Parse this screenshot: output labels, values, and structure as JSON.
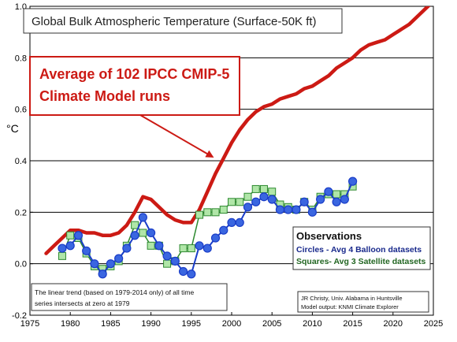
{
  "chart_data": {
    "type": "line",
    "title": "Global Bulk Atmospheric Temperature (Surface-50K ft)",
    "ylabel": "°C",
    "xlim": [
      1975,
      2025
    ],
    "ylim": [
      -0.2,
      1.0
    ],
    "x_ticks": [
      1975,
      1980,
      1985,
      1990,
      1995,
      2000,
      2005,
      2010,
      2015,
      2020,
      2025
    ],
    "x_tick_labels": [
      "1975",
      "1980",
      "1985",
      "1990",
      "1995",
      "2000",
      "2005",
      "2010",
      "2015",
      "2020",
      "2025"
    ],
    "y_ticks": [
      -0.2,
      0.0,
      0.2,
      0.4,
      0.6,
      0.8,
      1.0
    ],
    "y_tick_labels": [
      "-0.2",
      "0.0",
      "0.2",
      "0.4",
      "0.6",
      "0.8",
      "1.0"
    ],
    "grid": "horizontal",
    "series": [
      {
        "name": "Average of 102 IPCC CMIP-5 Climate Model runs",
        "style": "line",
        "color": "#cc1a14",
        "x": [
          1977,
          1978,
          1979,
          1980,
          1981,
          1982,
          1983,
          1984,
          1985,
          1986,
          1987,
          1988,
          1989,
          1990,
          1991,
          1992,
          1993,
          1994,
          1995,
          1996,
          1997,
          1998,
          1999,
          2000,
          2001,
          2002,
          2003,
          2004,
          2005,
          2006,
          2007,
          2008,
          2009,
          2010,
          2011,
          2012,
          2013,
          2014,
          2015,
          2016,
          2017,
          2018,
          2019,
          2020,
          2021,
          2022,
          2023,
          2024,
          2025
        ],
        "y": [
          0.04,
          0.07,
          0.1,
          0.13,
          0.13,
          0.12,
          0.12,
          0.11,
          0.11,
          0.12,
          0.15,
          0.2,
          0.26,
          0.25,
          0.22,
          0.19,
          0.17,
          0.16,
          0.16,
          0.21,
          0.28,
          0.35,
          0.41,
          0.47,
          0.52,
          0.56,
          0.59,
          0.61,
          0.62,
          0.64,
          0.65,
          0.66,
          0.68,
          0.69,
          0.71,
          0.73,
          0.76,
          0.78,
          0.8,
          0.83,
          0.85,
          0.86,
          0.87,
          0.89,
          0.91,
          0.93,
          0.96,
          0.99,
          1.02
        ]
      },
      {
        "name": "Circles - Avg 4 Balloon datasets",
        "style": "line-circle",
        "color": "#1a3dc8",
        "fill": "#3a66e0",
        "x": [
          1979,
          1980,
          1981,
          1982,
          1983,
          1984,
          1985,
          1986,
          1987,
          1988,
          1989,
          1990,
          1991,
          1992,
          1993,
          1994,
          1995,
          1996,
          1997,
          1998,
          1999,
          2000,
          2001,
          2002,
          2003,
          2004,
          2005,
          2006,
          2007,
          2008,
          2009,
          2010,
          2011,
          2012,
          2013,
          2014,
          2015
        ],
        "y": [
          0.06,
          0.07,
          0.11,
          0.05,
          0.0,
          -0.04,
          0.0,
          0.02,
          0.06,
          0.11,
          0.18,
          0.12,
          0.07,
          0.03,
          0.01,
          -0.03,
          -0.04,
          0.07,
          0.06,
          0.1,
          0.13,
          0.16,
          0.16,
          0.22,
          0.24,
          0.26,
          0.25,
          0.21,
          0.21,
          0.21,
          0.24,
          0.2,
          0.25,
          0.28,
          0.24,
          0.25,
          0.32
        ]
      },
      {
        "name": "Squares- Avg 3 Satellite datasets",
        "style": "line-square",
        "color": "#2e8a30",
        "fill": "#b0e6a8",
        "x": [
          1979,
          1980,
          1981,
          1982,
          1983,
          1984,
          1985,
          1986,
          1987,
          1988,
          1989,
          1990,
          1991,
          1992,
          1993,
          1994,
          1995,
          1996,
          1997,
          1998,
          1999,
          2000,
          2001,
          2002,
          2003,
          2004,
          2005,
          2006,
          2007,
          2008,
          2009,
          2010,
          2011,
          2012,
          2013,
          2014,
          2015
        ],
        "y": [
          0.03,
          0.11,
          0.1,
          0.04,
          -0.01,
          -0.02,
          -0.01,
          0.01,
          0.07,
          0.15,
          0.12,
          0.07,
          0.07,
          0.0,
          0.01,
          0.06,
          0.06,
          0.19,
          0.2,
          0.2,
          0.21,
          0.24,
          0.24,
          0.26,
          0.29,
          0.29,
          0.28,
          0.23,
          0.22,
          0.21,
          0.24,
          0.21,
          0.26,
          0.27,
          0.27,
          0.27,
          0.3
        ]
      }
    ],
    "annotations": {
      "model_label_line1": "Average of 102 IPCC CMIP-5",
      "model_label_line2": "Climate Model runs",
      "observations_title": "Observations",
      "observations_circles": "Circles - Avg 4 Balloon datasets",
      "observations_squares": "Squares- Avg 3 Satellite datasets",
      "trend_note_line1": "The linear trend (based on 1979-2014 only) of all time",
      "trend_note_line2": "series intersects at zero at 1979",
      "credit_line1": "JR Christy, Univ. Alabama in Huntsville",
      "credit_line2": "Model output: KNMI Climate Explorer"
    },
    "legend_placement": "bottom-right"
  }
}
